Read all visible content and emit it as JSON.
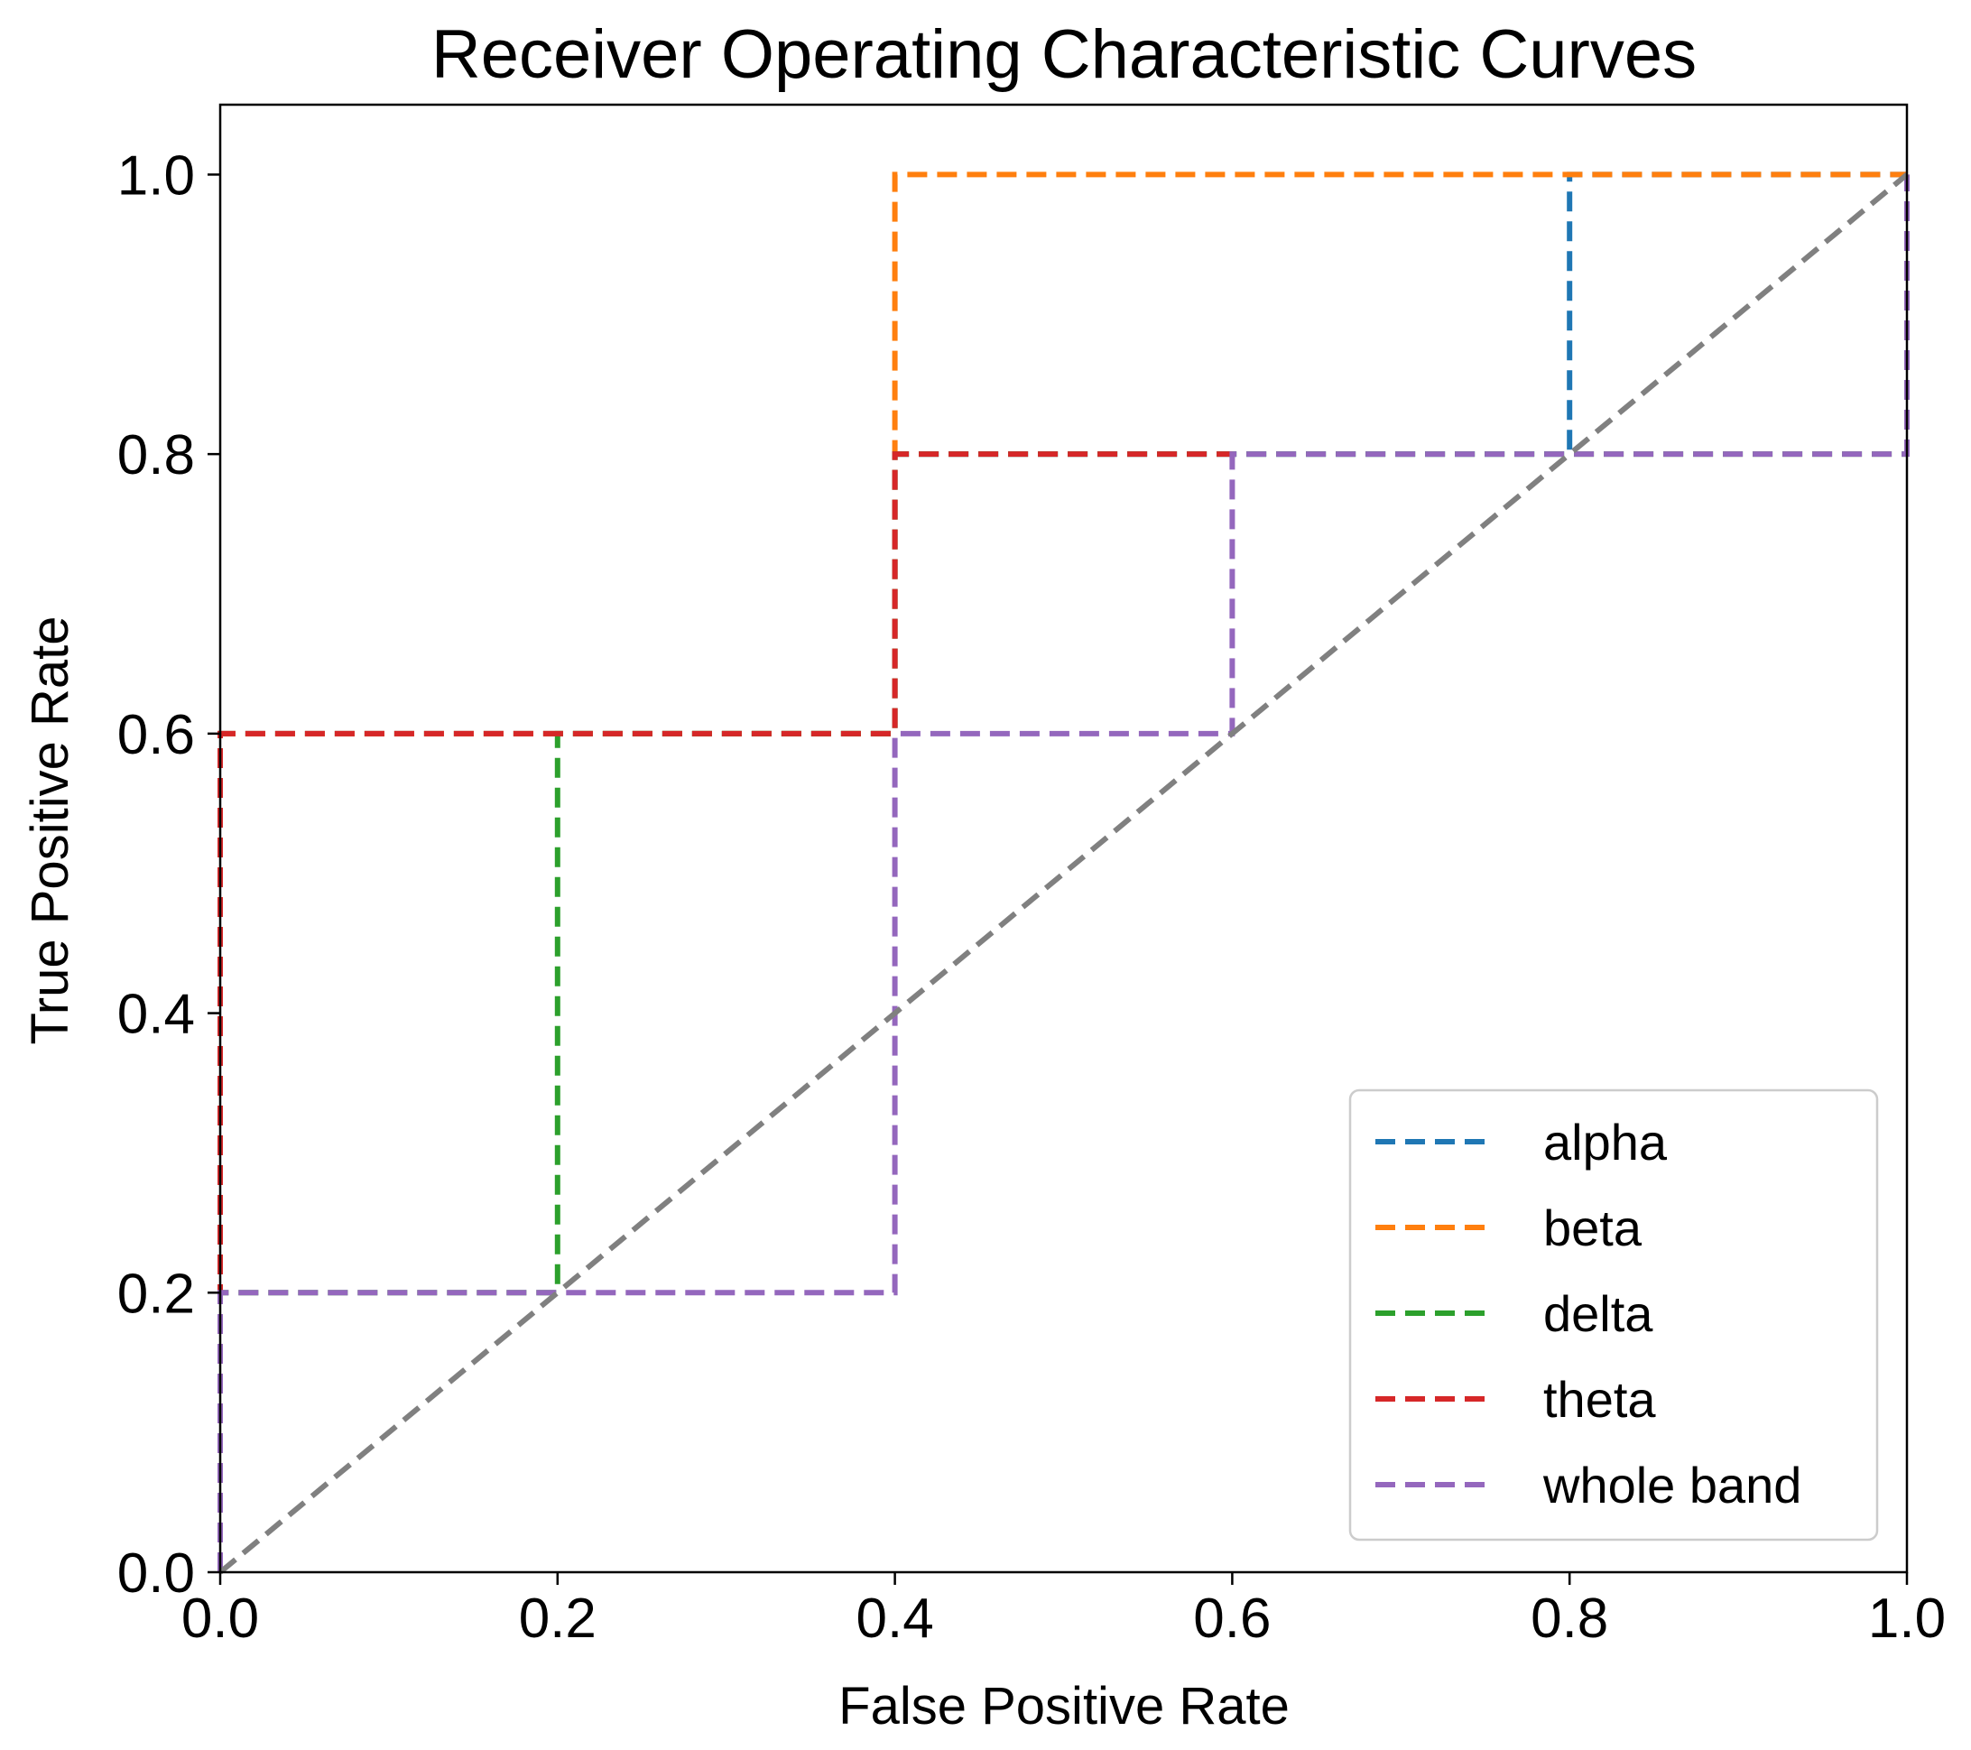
{
  "chart_data": {
    "type": "line",
    "title": "Receiver Operating Characteristic Curves",
    "xlabel": "False Positive Rate",
    "ylabel": "True Positive Rate",
    "xlim": [
      0.0,
      1.0
    ],
    "ylim": [
      0.0,
      1.05
    ],
    "xticks": [
      "0.0",
      "0.2",
      "0.4",
      "0.6",
      "0.8",
      "1.0"
    ],
    "yticks": [
      "0.0",
      "0.2",
      "0.4",
      "0.6",
      "0.8",
      "1.0"
    ],
    "grid": false,
    "legend_position": "lower right",
    "line_style": "dashed",
    "series": [
      {
        "name": "alpha",
        "color": "#1f77b4",
        "x": [
          0.0,
          0.0,
          0.4,
          0.4,
          0.8,
          0.8,
          1.0
        ],
        "y": [
          0.0,
          0.6,
          0.6,
          0.8,
          0.8,
          1.0,
          1.0
        ]
      },
      {
        "name": "beta",
        "color": "#ff7f0e",
        "x": [
          0.0,
          0.0,
          0.4,
          0.4,
          1.0
        ],
        "y": [
          0.0,
          0.6,
          0.6,
          1.0,
          1.0
        ]
      },
      {
        "name": "delta",
        "color": "#2ca02c",
        "x": [
          0.0,
          0.0,
          0.2,
          0.2,
          0.4,
          0.4,
          1.0
        ],
        "y": [
          0.0,
          0.2,
          0.2,
          0.6,
          0.6,
          0.8,
          0.8
        ]
      },
      {
        "name": "theta",
        "color": "#d62728",
        "x": [
          0.0,
          0.0,
          0.4,
          0.4,
          0.6
        ],
        "y": [
          0.0,
          0.6,
          0.6,
          0.8,
          0.8
        ]
      },
      {
        "name": "whole band",
        "color": "#9467bd",
        "x": [
          0.0,
          0.0,
          0.4,
          0.4,
          0.6,
          0.6,
          1.0,
          1.0
        ],
        "y": [
          0.0,
          0.2,
          0.2,
          0.6,
          0.6,
          0.8,
          0.8,
          1.0
        ]
      }
    ],
    "reference_line": {
      "color": "#808080",
      "x": [
        0.0,
        1.0
      ],
      "y": [
        0.0,
        1.0
      ]
    }
  }
}
